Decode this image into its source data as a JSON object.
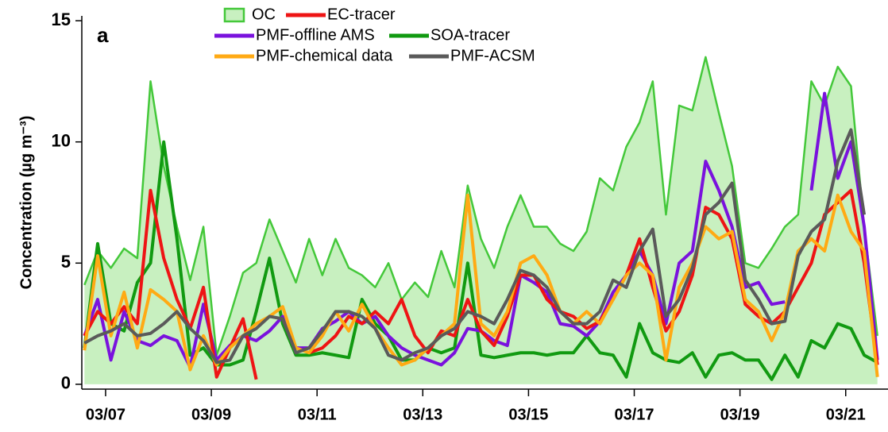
{
  "chart_data": {
    "type": "line",
    "panel_label": "a",
    "ylabel": "Concentration (µg m⁻³)",
    "x": [
      6.6,
      6.85,
      7.1,
      7.35,
      7.6,
      7.85,
      8.1,
      8.35,
      8.6,
      8.85,
      9.1,
      9.35,
      9.6,
      9.85,
      10.1,
      10.35,
      10.6,
      10.85,
      11.1,
      11.35,
      11.6,
      11.85,
      12.1,
      12.35,
      12.6,
      12.85,
      13.1,
      13.35,
      13.6,
      13.85,
      14.1,
      14.35,
      14.6,
      14.85,
      15.1,
      15.35,
      15.6,
      15.85,
      16.1,
      16.35,
      16.6,
      16.85,
      17.1,
      17.35,
      17.6,
      17.85,
      18.1,
      18.35,
      18.6,
      18.85,
      19.1,
      19.35,
      19.6,
      19.85,
      20.1,
      20.35,
      20.6,
      20.85,
      21.1,
      21.35,
      21.6
    ],
    "xlim": [
      6.55,
      21.8
    ],
    "xticks": [
      {
        "value": 7,
        "label": "03/07"
      },
      {
        "value": 9,
        "label": "03/09"
      },
      {
        "value": 11,
        "label": "03/11"
      },
      {
        "value": 13,
        "label": "03/13"
      },
      {
        "value": 15,
        "label": "03/15"
      },
      {
        "value": 17,
        "label": "03/17"
      },
      {
        "value": 19,
        "label": "03/19"
      },
      {
        "value": 21,
        "label": "03/21"
      }
    ],
    "ylim": [
      -0.2,
      15.2
    ],
    "yticks": [
      0,
      5,
      10,
      15
    ],
    "series": [
      {
        "name": "OC",
        "style": "area",
        "color": "#44c83a",
        "fill": "#c8f0c0",
        "values": [
          4.1,
          5.5,
          4.8,
          5.6,
          5.2,
          12.5,
          9.0,
          6.5,
          4.3,
          6.5,
          1.2,
          2.8,
          4.6,
          5.0,
          6.8,
          5.5,
          4.2,
          6.0,
          4.5,
          6.0,
          4.8,
          4.5,
          4.0,
          5.0,
          3.5,
          4.2,
          3.6,
          5.5,
          4.0,
          8.2,
          6.0,
          4.8,
          6.5,
          7.8,
          6.5,
          6.5,
          5.8,
          5.5,
          6.3,
          8.5,
          8.0,
          9.8,
          10.8,
          12.5,
          7.0,
          11.5,
          11.3,
          13.5,
          11.2,
          9.0,
          5.0,
          4.8,
          5.6,
          6.5,
          7.0,
          12.5,
          11.5,
          13.1,
          12.3,
          6.5,
          2.0
        ]
      },
      {
        "name": "SOA-tracer",
        "style": "line",
        "color": "#119a11",
        "values": [
          1.5,
          5.8,
          2.5,
          2.2,
          4.2,
          5.0,
          10.0,
          6.0,
          1.2,
          1.5,
          0.8,
          0.8,
          1.0,
          3.0,
          5.2,
          2.5,
          1.2,
          1.2,
          1.3,
          1.2,
          1.1,
          3.5,
          2.5,
          2.0,
          1.0,
          1.0,
          1.5,
          1.3,
          1.5,
          5.0,
          1.2,
          1.1,
          1.2,
          1.3,
          1.3,
          1.2,
          1.3,
          1.3,
          2.0,
          1.3,
          1.2,
          0.3,
          2.5,
          1.3,
          1.0,
          0.9,
          1.3,
          0.3,
          1.2,
          1.3,
          1.0,
          1.0,
          0.2,
          1.2,
          0.3,
          1.8,
          1.5,
          2.5,
          2.3,
          1.2,
          0.9
        ]
      },
      {
        "name": "PMF-offline AMS",
        "style": "line",
        "color": "#7a12dd",
        "values": [
          2.0,
          3.5,
          1.0,
          3.0,
          1.8,
          1.6,
          2.0,
          1.8,
          0.7,
          3.3,
          1.0,
          1.6,
          2.0,
          1.8,
          2.2,
          2.8,
          1.5,
          1.5,
          2.3,
          2.6,
          3.0,
          2.5,
          2.8,
          2.0,
          1.5,
          1.2,
          1.0,
          0.8,
          1.3,
          2.3,
          2.2,
          1.8,
          1.6,
          4.5,
          4.2,
          3.8,
          2.5,
          2.4,
          2.0,
          2.6,
          3.8,
          4.5,
          5.5,
          4.5,
          2.5,
          5.0,
          5.5,
          9.2,
          8.0,
          6.5,
          4.0,
          4.2,
          3.3,
          3.4,
          null,
          8.0,
          12.0,
          8.5,
          10.0,
          6.5,
          1.0
        ]
      },
      {
        "name": "EC-tracer",
        "style": "line",
        "color": "#ee1414",
        "values": [
          2.0,
          3.0,
          2.5,
          3.2,
          2.5,
          8.0,
          5.2,
          3.5,
          2.3,
          4.0,
          0.3,
          1.5,
          2.7,
          0.2,
          null,
          null,
          null,
          1.3,
          1.5,
          2.0,
          2.8,
          2.5,
          3.0,
          2.5,
          3.5,
          2.0,
          1.3,
          2.2,
          2.0,
          3.5,
          2.2,
          1.6,
          2.8,
          4.5,
          4.5,
          3.5,
          3.0,
          2.8,
          2.3,
          2.6,
          3.5,
          4.5,
          6.0,
          4.0,
          2.2,
          3.0,
          4.5,
          7.3,
          7.0,
          6.0,
          3.3,
          2.8,
          2.5,
          3.0,
          4.0,
          5.0,
          7.0,
          7.5,
          8.0,
          5.0,
          0.8
        ]
      },
      {
        "name": "PMF-chemical data",
        "style": "line",
        "color": "#ffaa14",
        "values": [
          1.4,
          5.3,
          2.0,
          3.8,
          1.5,
          3.9,
          3.5,
          3.0,
          0.6,
          2.0,
          0.8,
          1.5,
          2.0,
          2.5,
          2.8,
          3.2,
          1.5,
          1.3,
          2.0,
          3.0,
          2.2,
          3.3,
          2.3,
          1.5,
          0.8,
          1.0,
          1.5,
          2.0,
          2.5,
          7.8,
          2.5,
          2.0,
          3.0,
          5.0,
          5.3,
          4.5,
          3.0,
          2.5,
          3.0,
          2.5,
          3.5,
          4.5,
          5.0,
          4.5,
          1.0,
          4.0,
          5.0,
          6.5,
          6.0,
          6.3,
          3.5,
          3.0,
          1.8,
          3.0,
          5.5,
          6.0,
          5.5,
          7.8,
          6.3,
          5.5,
          0.3
        ]
      },
      {
        "name": "PMF-ACSM",
        "style": "line",
        "color": "#5a5a5a",
        "values": [
          1.7,
          2.0,
          2.2,
          2.5,
          2.0,
          2.1,
          2.5,
          3.0,
          2.3,
          1.8,
          0.9,
          1.0,
          2.0,
          2.3,
          2.8,
          2.7,
          1.3,
          1.5,
          2.2,
          3.0,
          3.0,
          2.8,
          2.3,
          1.2,
          1.0,
          1.3,
          1.5,
          2.0,
          2.3,
          3.0,
          2.8,
          2.5,
          3.5,
          4.7,
          4.5,
          4.0,
          3.0,
          2.5,
          2.5,
          3.0,
          4.3,
          4.0,
          5.5,
          6.4,
          2.8,
          3.5,
          4.8,
          7.0,
          7.5,
          8.3,
          4.3,
          3.5,
          2.5,
          2.6,
          5.3,
          6.3,
          6.8,
          9.2,
          10.5,
          7.0,
          null
        ]
      }
    ]
  }
}
